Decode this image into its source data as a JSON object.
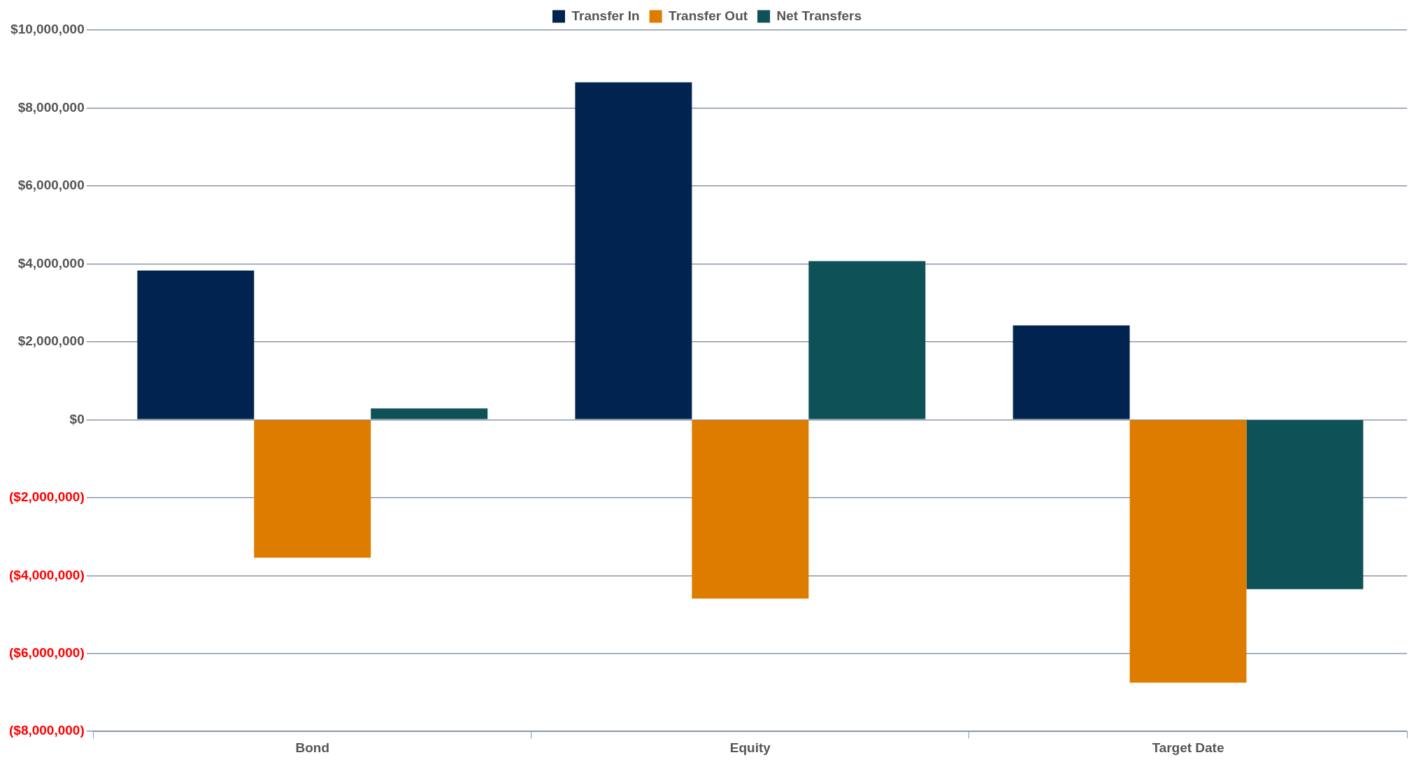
{
  "chart_data": {
    "type": "bar",
    "categories": [
      "Bond",
      "Equity",
      "Target Date"
    ],
    "series": [
      {
        "name": "Transfer In",
        "color": "#00234f",
        "values": [
          3830000,
          8660000,
          2420000
        ]
      },
      {
        "name": "Transfer Out",
        "color": "#de7c00",
        "values": [
          -3540000,
          -4590000,
          -6750000
        ]
      },
      {
        "name": "Net Transfers",
        "color": "#0e5257",
        "values": [
          290000,
          4070000,
          -4350000
        ]
      }
    ],
    "ylim": [
      -8000000,
      10000000
    ],
    "yticks": [
      {
        "value": -8000000,
        "label": "($8,000,000)"
      },
      {
        "value": -6000000,
        "label": "($6,000,000)"
      },
      {
        "value": -4000000,
        "label": "($4,000,000)"
      },
      {
        "value": -2000000,
        "label": "($2,000,000)"
      },
      {
        "value": 0,
        "label": "$0"
      },
      {
        "value": 2000000,
        "label": "$2,000,000"
      },
      {
        "value": 4000000,
        "label": "$4,000,000"
      },
      {
        "value": 6000000,
        "label": "$6,000,000"
      },
      {
        "value": 8000000,
        "label": "$8,000,000"
      },
      {
        "value": 10000000,
        "label": "$10,000,000"
      }
    ],
    "grid": "y",
    "legend": "top"
  }
}
